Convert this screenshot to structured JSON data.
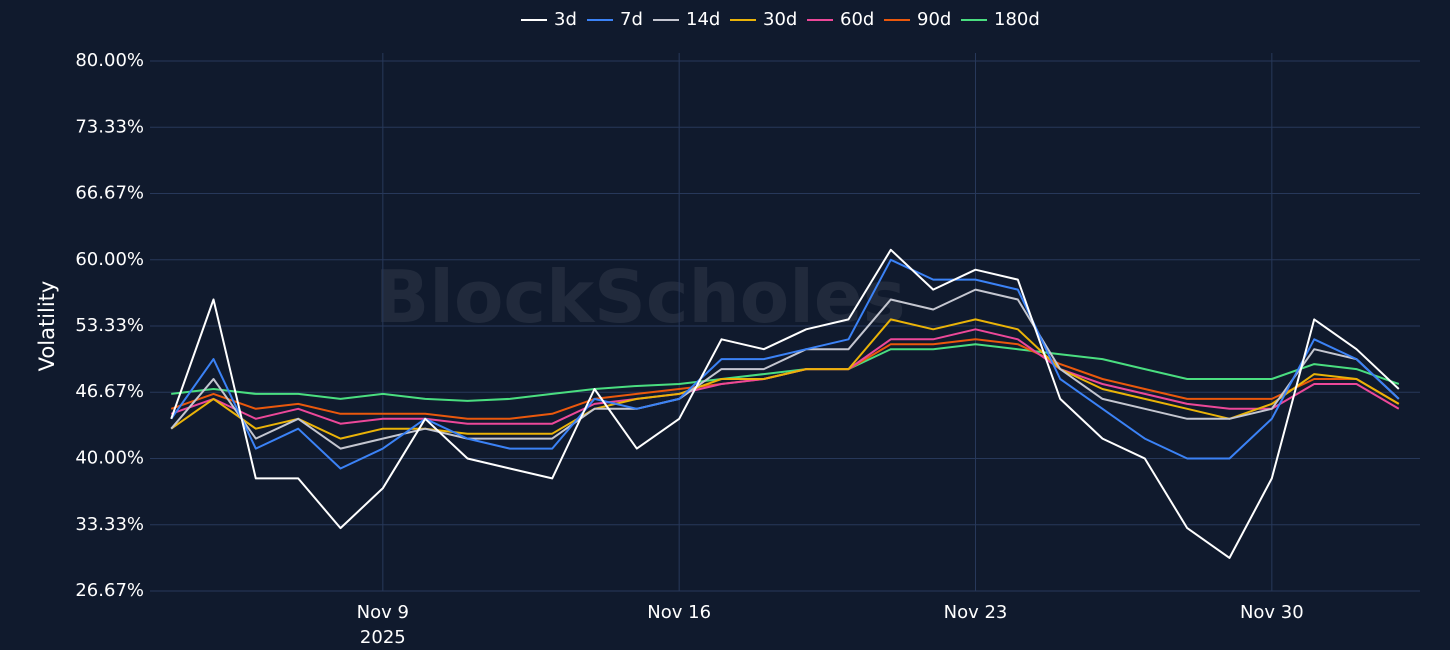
{
  "chart_data": {
    "type": "line",
    "y_label": "Volatility",
    "watermark": "BlockScholes",
    "x_year_label": "2025",
    "x": [
      "2025-11-04",
      "2025-11-05",
      "2025-11-06",
      "2025-11-07",
      "2025-11-08",
      "2025-11-09",
      "2025-11-10",
      "2025-11-11",
      "2025-11-12",
      "2025-11-13",
      "2025-11-14",
      "2025-11-15",
      "2025-11-16",
      "2025-11-17",
      "2025-11-18",
      "2025-11-19",
      "2025-11-20",
      "2025-11-21",
      "2025-11-22",
      "2025-11-23",
      "2025-11-24",
      "2025-11-25",
      "2025-11-26",
      "2025-11-27",
      "2025-11-28",
      "2025-11-29",
      "2025-11-30",
      "2025-12-01",
      "2025-12-02",
      "2025-12-03"
    ],
    "xlim": [
      "2025-11-03T12:00",
      "2025-12-03T12:00"
    ],
    "xticks": [
      {
        "value": "2025-11-09",
        "label": "Nov 9"
      },
      {
        "value": "2025-11-16",
        "label": "Nov 16"
      },
      {
        "value": "2025-11-23",
        "label": "Nov 23"
      },
      {
        "value": "2025-11-30",
        "label": "Nov 30"
      }
    ],
    "ylim": [
      26.67,
      80
    ],
    "yticks": [
      {
        "value": 26.67,
        "label": "26.67%"
      },
      {
        "value": 33.33,
        "label": "33.33%"
      },
      {
        "value": 40,
        "label": "40.00%"
      },
      {
        "value": 46.67,
        "label": "46.67%"
      },
      {
        "value": 53.33,
        "label": "53.33%"
      },
      {
        "value": 60,
        "label": "60.00%"
      },
      {
        "value": 66.67,
        "label": "66.67%"
      },
      {
        "value": 73.33,
        "label": "73.33%"
      },
      {
        "value": 80,
        "label": "80.00%"
      }
    ],
    "grid": true,
    "legend": "top",
    "series": [
      {
        "name": "3d",
        "color": "#ffffff",
        "values": [
          44,
          56,
          38,
          38,
          33,
          37,
          44,
          40,
          39,
          38,
          47,
          41,
          44,
          52,
          51,
          53,
          54,
          61,
          57,
          59,
          58,
          46,
          42,
          40,
          33,
          30,
          38,
          54,
          51,
          47
        ]
      },
      {
        "name": "7d",
        "color": "#3b82f6",
        "values": [
          44,
          50,
          41,
          43,
          39,
          41,
          44,
          42,
          41,
          41,
          46,
          45,
          46,
          50,
          50,
          51,
          52,
          60,
          58,
          58,
          57,
          48,
          45,
          42,
          40,
          40,
          44,
          52,
          50,
          46
        ]
      },
      {
        "name": "14d",
        "color": "#c4c6d0",
        "values": [
          43,
          48,
          42,
          44,
          41,
          42,
          43,
          42,
          42,
          42,
          45,
          45,
          46,
          49,
          49,
          51,
          51,
          56,
          55,
          57,
          56,
          49,
          46,
          45,
          44,
          44,
          45,
          51,
          50,
          46
        ]
      },
      {
        "name": "30d",
        "color": "#eab308",
        "values": [
          43,
          46,
          43,
          44,
          42,
          43,
          43,
          42.5,
          42.5,
          42.5,
          45,
          46,
          46.5,
          48,
          48,
          49,
          49,
          54,
          53,
          54,
          53,
          49,
          47,
          46,
          45,
          44,
          45.5,
          48.5,
          48,
          45.5
        ]
      },
      {
        "name": "60d",
        "color": "#ec4899",
        "values": [
          44.5,
          46,
          44,
          45,
          43.5,
          44,
          44,
          43.5,
          43.5,
          43.5,
          45.5,
          46,
          46.5,
          47.5,
          48,
          49,
          49,
          52,
          52,
          53,
          52,
          49,
          47.5,
          46.5,
          45.5,
          45,
          45,
          47.5,
          47.5,
          45
        ]
      },
      {
        "name": "90d",
        "color": "#ea580c",
        "values": [
          45,
          46.5,
          45,
          45.5,
          44.5,
          44.5,
          44.5,
          44,
          44,
          44.5,
          46,
          46.5,
          47,
          47.5,
          48,
          49,
          49,
          51.5,
          51.5,
          52,
          51.5,
          49.5,
          48,
          47,
          46,
          46,
          46,
          48,
          48,
          45.5
        ]
      },
      {
        "name": "180d",
        "color": "#4ade80",
        "values": [
          46.5,
          47,
          46.5,
          46.5,
          46,
          46.5,
          46,
          45.8,
          46,
          46.5,
          47,
          47.3,
          47.5,
          48,
          48.5,
          49,
          49,
          51,
          51,
          51.5,
          51,
          50.5,
          50,
          49,
          48,
          48,
          48,
          49.5,
          49,
          47.5
        ]
      }
    ]
  }
}
